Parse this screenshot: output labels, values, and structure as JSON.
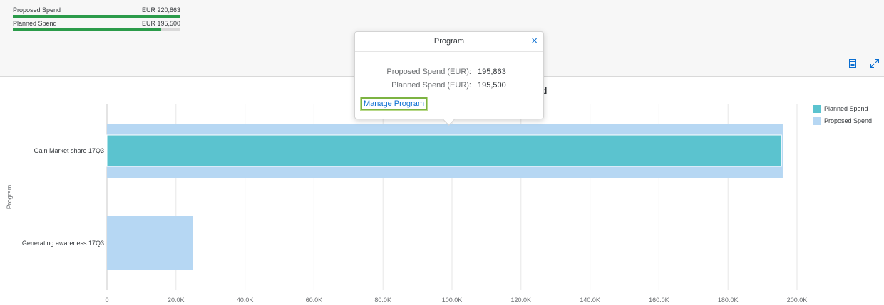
{
  "kpis": [
    {
      "label": "Proposed Spend",
      "value": "EUR 220,863",
      "fraction": 1.0
    },
    {
      "label": "Planned Spend",
      "value": "EUR 195,500",
      "fraction": 0.885
    }
  ],
  "toolbar": {
    "table_icon": "table-view-icon",
    "fullscreen_icon": "fullscreen-icon"
  },
  "colors": {
    "planned": "#5bc3cf",
    "proposed": "#b6d7f3",
    "kpi_bar": "#2b9b4a",
    "link": "#0a6ed1"
  },
  "popover": {
    "title": "Program",
    "close_icon": "×",
    "fields": [
      {
        "label": "Proposed Spend (EUR):",
        "value": "195,863"
      },
      {
        "label": "Planned Spend (EUR):",
        "value": "195,500"
      }
    ],
    "link": "Manage Program",
    "partial_title_char": "d"
  },
  "chart_data": {
    "type": "bar",
    "orientation": "horizontal",
    "ylabel": "Program",
    "categories": [
      "Gain Market share 17Q3",
      "Generating awareness 17Q3"
    ],
    "series": [
      {
        "name": "Planned Spend",
        "values": [
          195500,
          0
        ]
      },
      {
        "name": "Proposed Spend",
        "values": [
          195863,
          25000
        ]
      }
    ],
    "xlim": [
      0,
      200000
    ],
    "xticks": [
      "0",
      "20.0K",
      "40.0K",
      "60.0K",
      "80.0K",
      "100.0K",
      "120.0K",
      "140.0K",
      "160.0K",
      "180.0K",
      "200.0K"
    ],
    "legend": [
      "Planned Spend",
      "Proposed Spend"
    ],
    "legend_position": "top-right",
    "grid": true
  }
}
